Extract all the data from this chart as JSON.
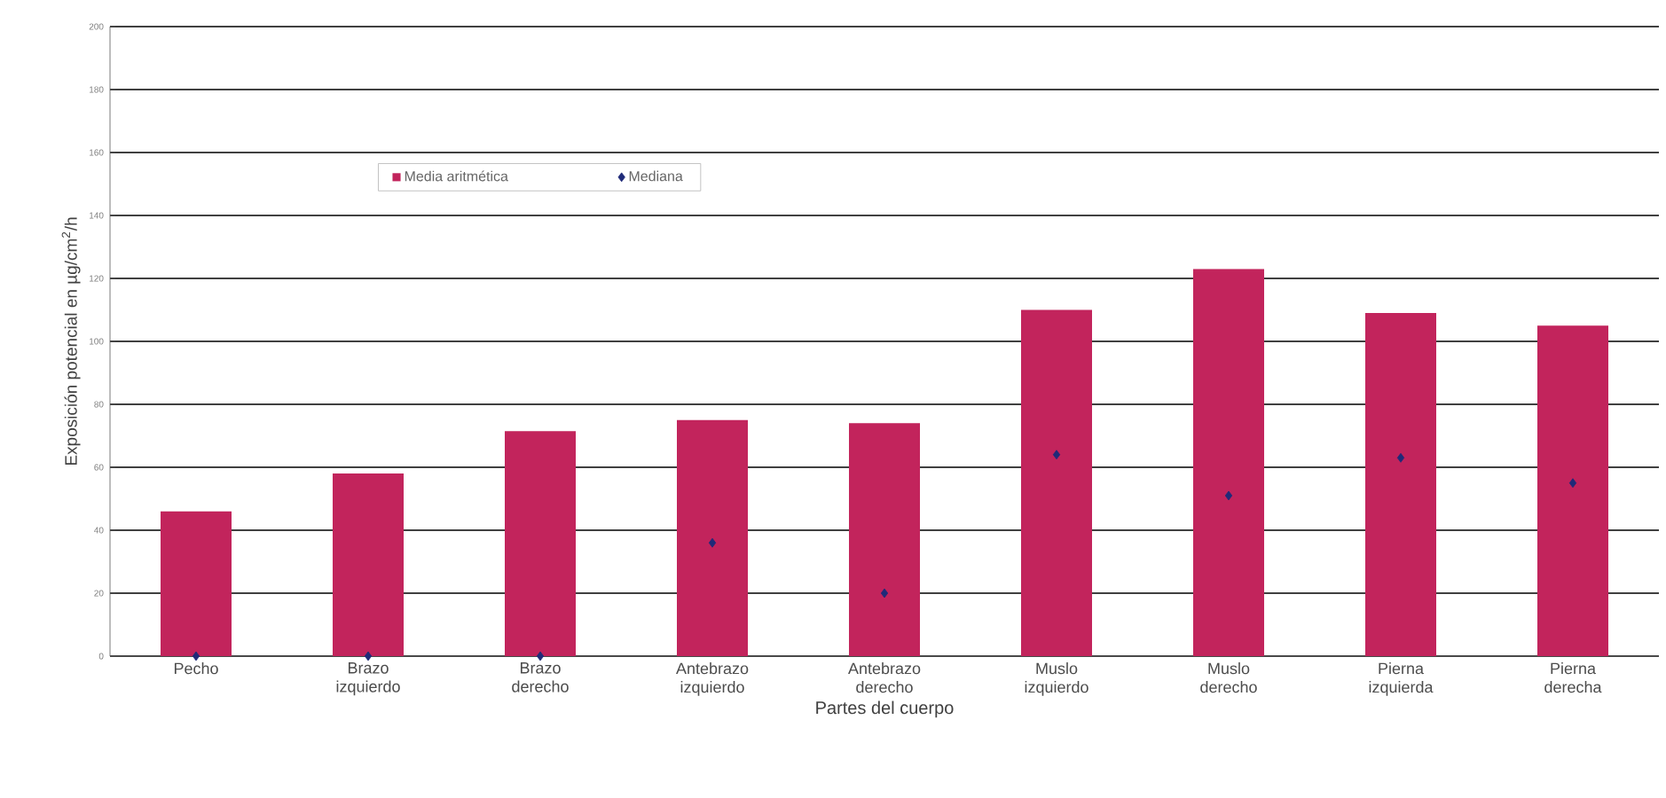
{
  "chart_data": {
    "type": "bar",
    "xlabel": "Partes del cuerpo",
    "ylabel": "Exposición potencial en µg/cm$^{2}$/h",
    "categories": [
      "Pecho",
      "Brazo izquierdo",
      "Brazo derecho",
      "Antebrazo izquierdo",
      "Antebrazo derecho",
      "Muslo izquierdo",
      "Muslo derecho",
      "Pierna izquierda",
      "Pierna derecha"
    ],
    "series": [
      {
        "name": "Media aritmética",
        "color": "#c2245c",
        "values": [
          46,
          58,
          71.5,
          75,
          74,
          110,
          123,
          109,
          105
        ]
      },
      {
        "name": "Mediana",
        "type": "scatter",
        "color": "#1f2a78",
        "marker": "diamond",
        "x": [
          "Pecho",
          "Brazo izquierdo",
          "Brazo derecho",
          "Antebrazo izquierdo",
          "Antebrazo derecho",
          "Muslo izquierdo",
          "Muslo derecho",
          "Pierna izquierda",
          "Pierna derecha"
        ],
        "values": [
          0,
          0,
          0,
          36,
          20,
          64,
          51,
          63,
          55
        ]
      }
    ],
    "ylim": [
      0,
      200
    ],
    "yticks": [
      0,
      20,
      40,
      60,
      80,
      100,
      120,
      140,
      160,
      180,
      200
    ],
    "grid": "y",
    "legend": "top left"
  }
}
